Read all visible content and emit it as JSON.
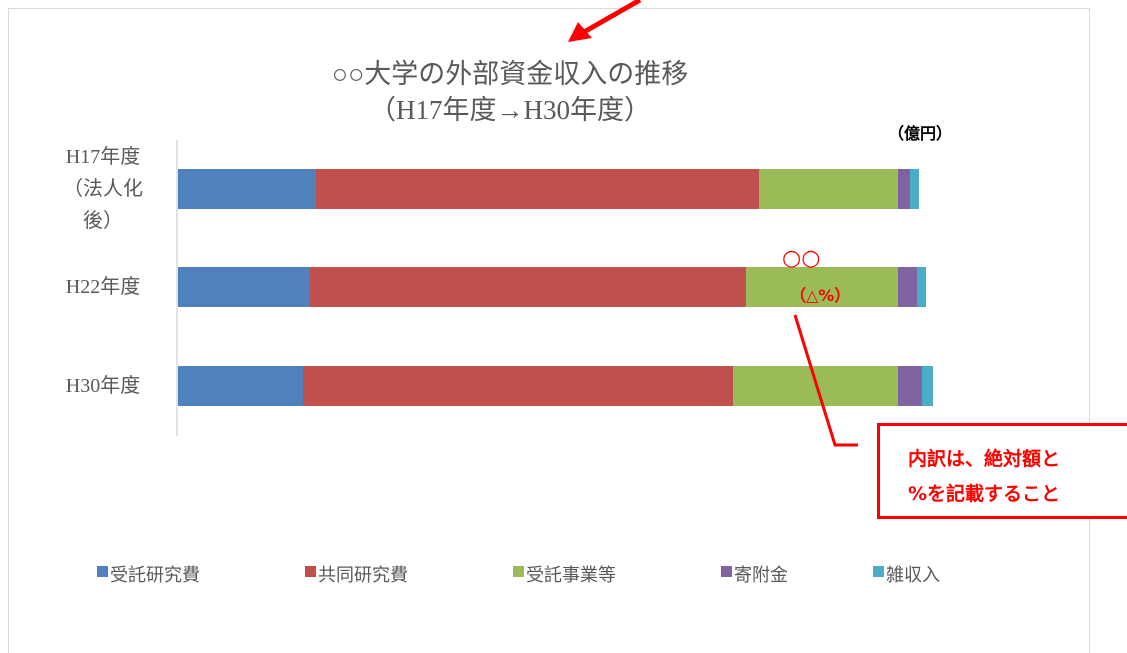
{
  "chart_data": {
    "type": "bar",
    "orientation": "horizontal",
    "stacked": true,
    "title": "○○大学の外部資金収入の推移",
    "subtitle": "（H17年度→H30年度）",
    "unit_label": "（億円）",
    "categories": [
      "H17年度（法人化後）",
      "H22年度",
      "H30年度"
    ],
    "series": [
      {
        "name": "受託研究費",
        "color": "#4f81bd",
        "values": [
          13.8,
          13.2,
          12.5
        ]
      },
      {
        "name": "共同研究費",
        "color": "#c0504d",
        "values": [
          44.3,
          43.6,
          43.0
        ]
      },
      {
        "name": "受託事業等",
        "color": "#9bbb59",
        "values": [
          13.9,
          15.2,
          16.5
        ]
      },
      {
        "name": "寄附金",
        "color": "#8064a2",
        "values": [
          1.2,
          1.9,
          2.4
        ]
      },
      {
        "name": "雑収入",
        "color": "#4bacc6",
        "values": [
          0.9,
          0.9,
          1.1
        ]
      }
    ],
    "xlim": [
      0,
      80
    ],
    "legend": "bottom",
    "annotations": [
      "○○",
      "（△%）"
    ],
    "callout": [
      "内訳は、絶対額と",
      "%を記載すること"
    ]
  }
}
